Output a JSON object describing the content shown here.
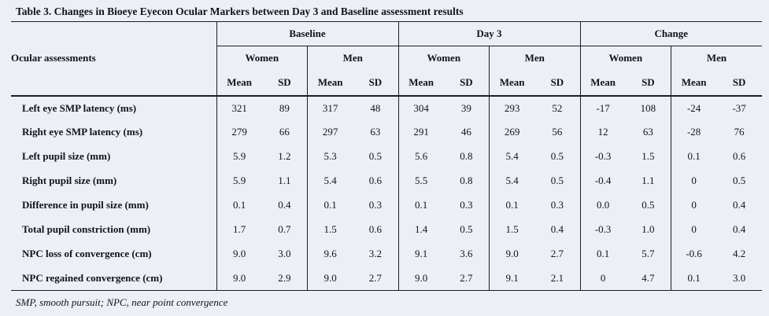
{
  "page": {
    "title": "Table 3. Changes in Bioeye Eyecon Ocular Markers between Day 3 and Baseline assessment results",
    "footnote": "SMP, smooth pursuit; NPC, near point convergence"
  },
  "table": {
    "row_header": "Ocular assessments",
    "stat_labels": [
      "Mean",
      "SD"
    ],
    "groups": [
      {
        "label": "Baseline",
        "subgroups": [
          "Women",
          "Men"
        ]
      },
      {
        "label": "Day 3",
        "subgroups": [
          "Women",
          "Men"
        ]
      },
      {
        "label": "Change",
        "subgroups": [
          "Women",
          "Men"
        ]
      }
    ],
    "rows": [
      {
        "label": "Left eye SMP latency (ms)",
        "values": [
          "321",
          "89",
          "317",
          "48",
          "304",
          "39",
          "293",
          "52",
          "-17",
          "108",
          "-24",
          "-37"
        ]
      },
      {
        "label": "Right eye SMP latency (ms)",
        "values": [
          "279",
          "66",
          "297",
          "63",
          "291",
          "46",
          "269",
          "56",
          "12",
          "63",
          "-28",
          "76"
        ]
      },
      {
        "label": "Left pupil size (mm)",
        "values": [
          "5.9",
          "1.2",
          "5.3",
          "0.5",
          "5.6",
          "0.8",
          "5.4",
          "0.5",
          "-0.3",
          "1.5",
          "0.1",
          "0.6"
        ]
      },
      {
        "label": "Right pupil size (mm)",
        "values": [
          "5.9",
          "1.1",
          "5.4",
          "0.6",
          "5.5",
          "0.8",
          "5.4",
          "0.5",
          "-0.4",
          "1.1",
          "0",
          "0.5"
        ]
      },
      {
        "label": "Difference in pupil size (mm)",
        "values": [
          "0.1",
          "0.4",
          "0.1",
          "0.3",
          "0.1",
          "0.3",
          "0.1",
          "0.3",
          "0.0",
          "0.5",
          "0",
          "0.4"
        ]
      },
      {
        "label": "Total pupil constriction (mm)",
        "values": [
          "1.7",
          "0.7",
          "1.5",
          "0.6",
          "1.4",
          "0.5",
          "1.5",
          "0.4",
          "-0.3",
          "1.0",
          "0",
          "0.4"
        ]
      },
      {
        "label": "NPC loss of convergence (cm)",
        "values": [
          "9.0",
          "3.0",
          "9.6",
          "3.2",
          "9.1",
          "3.6",
          "9.0",
          "2.7",
          "0.1",
          "5.7",
          "-0.6",
          "4.2"
        ]
      },
      {
        "label": "NPC regained convergence (cm)",
        "values": [
          "9.0",
          "2.9",
          "9.0",
          "2.7",
          "9.0",
          "2.7",
          "9.1",
          "2.1",
          "0",
          "4.7",
          "0.1",
          "3.0"
        ]
      }
    ]
  },
  "colors": {
    "background": "#edeef6",
    "text": "#12131c",
    "border": "#1c1d27"
  }
}
